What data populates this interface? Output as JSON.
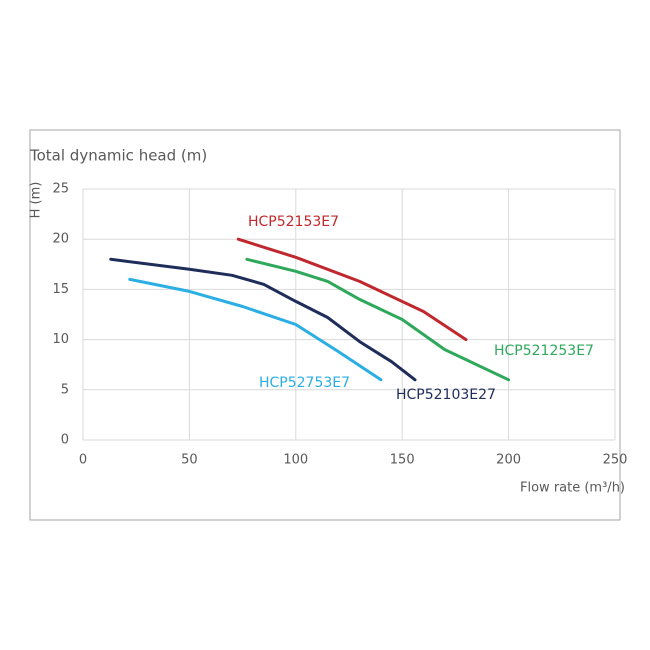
{
  "chart_data": {
    "type": "line",
    "title": "Total dynamic head (m)",
    "y_label": "H (m)",
    "x_label": "Flow rate (m³/h)",
    "xlim": [
      0,
      250
    ],
    "xticks": [
      0,
      50,
      100,
      150,
      200,
      250
    ],
    "ylim": [
      0,
      25
    ],
    "yticks": [
      0,
      5,
      10,
      15,
      20,
      25
    ],
    "grid": true,
    "series": [
      {
        "name": "HCP52153E7",
        "color": "#c0282d",
        "x": [
          73,
          100,
          130,
          160,
          180
        ],
        "values": [
          20,
          18.2,
          15.8,
          12.8,
          10
        ]
      },
      {
        "name": "HCP521253E7",
        "color": "#2ea85a",
        "x": [
          77,
          100,
          115,
          130,
          150,
          170,
          200
        ],
        "values": [
          18,
          16.8,
          15.8,
          14,
          12,
          9,
          6
        ]
      },
      {
        "name": "HCP52103E27",
        "color": "#1f2d5a",
        "x": [
          13,
          50,
          70,
          85,
          100,
          115,
          130,
          145,
          156
        ],
        "values": [
          18,
          17,
          16.4,
          15.5,
          13.8,
          12.2,
          9.8,
          7.8,
          6
        ]
      },
      {
        "name": "HCP52753E7",
        "color": "#2aaee3",
        "x": [
          22,
          50,
          75,
          100,
          120,
          140
        ],
        "values": [
          16,
          14.8,
          13.3,
          11.5,
          8.8,
          6
        ]
      }
    ]
  }
}
